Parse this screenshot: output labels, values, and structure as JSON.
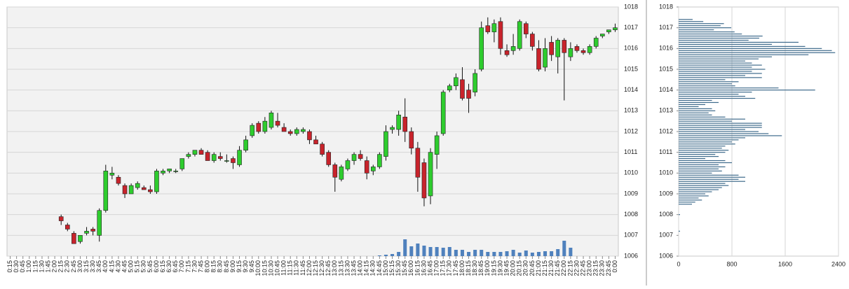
{
  "chart_data": [
    {
      "type": "candlestick",
      "categories": [
        "0:15",
        "0:30",
        "0:45",
        "1:00",
        "1:15",
        "1:30",
        "1:45",
        "2:00",
        "2:15",
        "2:30",
        "2:45",
        "3:00",
        "3:15",
        "3:30",
        "3:45",
        "4:00",
        "4:15",
        "4:30",
        "4:45",
        "5:00",
        "5:15",
        "5:30",
        "5:45",
        "6:00",
        "6:15",
        "6:30",
        "6:45",
        "7:00",
        "7:15",
        "7:30",
        "7:45",
        "8:00",
        "8:15",
        "8:30",
        "8:45",
        "9:00",
        "9:15",
        "9:30",
        "9:45",
        "10:00",
        "10:15",
        "10:30",
        "10:45",
        "11:00",
        "11:15",
        "11:30",
        "11:45",
        "12:00",
        "12:15",
        "12:30",
        "12:45",
        "13:00",
        "13:15",
        "13:30",
        "13:45",
        "14:00",
        "14:15",
        "14:30",
        "14:45",
        "15:00",
        "15:15",
        "15:30",
        "15:45",
        "16:00",
        "16:15",
        "16:30",
        "16:45",
        "17:00",
        "17:15",
        "17:30",
        "17:45",
        "18:00",
        "18:15",
        "18:30",
        "18:45",
        "19:00",
        "19:15",
        "19:30",
        "19:45",
        "20:00",
        "20:15",
        "20:30",
        "20:45",
        "21:00",
        "21:15",
        "21:30",
        "21:45",
        "22:00",
        "22:15",
        "22:30",
        "22:45",
        "23:00",
        "23:15",
        "23:30",
        "23:45",
        "0:00"
      ],
      "open": [
        null,
        null,
        null,
        null,
        null,
        null,
        null,
        null,
        1007.9,
        1007.5,
        1007.1,
        1006.7,
        1007.1,
        1007.3,
        1007.0,
        1008.2,
        1009.9,
        1009.8,
        1009.4,
        1009.0,
        1009.3,
        1009.3,
        1009.2,
        1009.1,
        1010.0,
        1010.1,
        1010.1,
        1010.2,
        1010.8,
        1010.9,
        1011.1,
        1011.0,
        1010.6,
        1010.8,
        1010.6,
        1010.7,
        1010.4,
        1011.1,
        1011.8,
        1012.4,
        1012.0,
        1012.2,
        1012.5,
        1012.2,
        1012.0,
        1011.9,
        1012.0,
        1012.0,
        1011.6,
        1011.4,
        1011.0,
        1010.4,
        1009.7,
        1010.2,
        1010.6,
        1010.9,
        1010.6,
        1010.1,
        1010.3,
        1010.8,
        1012.1,
        1012.1,
        1012.7,
        1012.0,
        1011.2,
        1010.5,
        1008.9,
        1010.9,
        1011.9,
        1014.0,
        1014.2,
        1014.5,
        1014.0,
        1013.9,
        1015.0,
        1017.1,
        1016.8,
        1017.3,
        1015.9,
        1015.9,
        1016.0,
        1017.2,
        1016.7,
        1016.0,
        1015.1,
        1016.3,
        1015.6,
        1016.4,
        1015.6,
        1016.1,
        1015.9,
        1015.8,
        1016.1,
        1016.6,
        1016.8,
        1016.9
      ],
      "high": [
        null,
        null,
        null,
        null,
        null,
        null,
        null,
        null,
        1008.0,
        1007.6,
        1007.2,
        1007.0,
        1007.4,
        1007.4,
        1008.3,
        1010.4,
        1010.3,
        1009.9,
        1009.5,
        1009.5,
        1009.6,
        1009.4,
        1009.4,
        1010.2,
        1010.2,
        1010.2,
        1010.2,
        1010.7,
        1011.0,
        1011.1,
        1011.2,
        1011.1,
        1011.0,
        1011.0,
        1010.9,
        1010.8,
        1011.3,
        1011.8,
        1012.4,
        1012.5,
        1012.7,
        1013.0,
        1012.9,
        1012.4,
        1012.1,
        1012.2,
        1012.2,
        1012.1,
        1011.8,
        1011.5,
        1011.1,
        1010.5,
        1010.4,
        1010.7,
        1011.0,
        1011.1,
        1010.8,
        1010.4,
        1011.0,
        1012.3,
        1012.3,
        1013.0,
        1013.6,
        1012.2,
        1011.5,
        1010.7,
        1011.2,
        1012.0,
        1014.0,
        1014.3,
        1014.8,
        1015.1,
        1014.3,
        1015.0,
        1017.3,
        1017.5,
        1017.4,
        1017.5,
        1016.2,
        1016.7,
        1017.4,
        1017.3,
        1016.8,
        1016.4,
        1016.5,
        1016.6,
        1016.5,
        1016.5,
        1016.3,
        1016.2,
        1016.0,
        1016.2,
        1016.6,
        1016.7,
        1016.9,
        1017.2
      ],
      "low": [
        null,
        null,
        null,
        null,
        null,
        null,
        null,
        null,
        1007.5,
        1007.2,
        1006.6,
        1006.6,
        1007.0,
        1007.0,
        1006.7,
        1008.1,
        1009.7,
        1009.4,
        1008.8,
        1009.0,
        1009.2,
        1009.2,
        1009.0,
        1009.0,
        1009.9,
        1010.0,
        1010.0,
        1010.1,
        1010.7,
        1010.8,
        1010.9,
        1010.6,
        1010.5,
        1010.6,
        1010.5,
        1010.2,
        1010.3,
        1011.0,
        1011.7,
        1011.9,
        1011.9,
        1012.1,
        1012.2,
        1012.0,
        1011.8,
        1011.8,
        1011.9,
        1011.4,
        1011.4,
        1010.8,
        1010.3,
        1009.1,
        1009.6,
        1010.1,
        1010.4,
        1010.6,
        1009.7,
        1009.9,
        1010.2,
        1010.6,
        1011.9,
        1011.8,
        1011.5,
        1010.9,
        1009.1,
        1008.4,
        1008.5,
        1010.2,
        1011.8,
        1013.9,
        1014.0,
        1013.5,
        1012.9,
        1013.7,
        1014.9,
        1016.7,
        1016.3,
        1015.7,
        1015.6,
        1015.7,
        1015.9,
        1016.5,
        1015.9,
        1014.9,
        1014.9,
        1015.4,
        1014.8,
        1013.5,
        1015.4,
        1015.8,
        1015.7,
        1015.7,
        1016.0,
        1016.5,
        1016.7,
        1016.8
      ],
      "close": [
        null,
        null,
        null,
        null,
        null,
        null,
        null,
        null,
        1007.7,
        1007.3,
        1006.6,
        1007.0,
        1007.2,
        1007.2,
        1008.2,
        1010.1,
        1010.0,
        1009.5,
        1009.0,
        1009.4,
        1009.5,
        1009.2,
        1009.1,
        1010.1,
        1010.1,
        1010.2,
        1010.1,
        1010.7,
        1010.9,
        1011.1,
        1010.9,
        1010.6,
        1010.9,
        1010.7,
        1010.6,
        1010.5,
        1011.1,
        1011.6,
        1012.3,
        1012.0,
        1012.5,
        1012.9,
        1012.3,
        1012.0,
        1011.9,
        1012.1,
        1012.1,
        1011.6,
        1011.4,
        1010.9,
        1010.4,
        1009.8,
        1010.3,
        1010.6,
        1010.9,
        1010.7,
        1010.0,
        1010.3,
        1010.9,
        1012.0,
        1012.2,
        1012.8,
        1012.0,
        1011.2,
        1009.8,
        1008.8,
        1011.0,
        1011.8,
        1013.9,
        1014.2,
        1014.6,
        1013.6,
        1013.6,
        1014.8,
        1017.0,
        1016.8,
        1017.2,
        1016.0,
        1015.7,
        1016.1,
        1017.3,
        1016.7,
        1016.1,
        1015.0,
        1016.0,
        1015.7,
        1016.4,
        1015.8,
        1016.0,
        1015.9,
        1015.8,
        1016.1,
        1016.5,
        1016.7,
        1016.9,
        1017.0
      ],
      "volume": [
        null,
        null,
        null,
        null,
        null,
        null,
        null,
        null,
        null,
        null,
        null,
        null,
        null,
        null,
        null,
        null,
        null,
        null,
        null,
        null,
        null,
        null,
        null,
        null,
        null,
        null,
        null,
        null,
        null,
        null,
        null,
        null,
        null,
        null,
        null,
        null,
        null,
        null,
        null,
        null,
        null,
        null,
        null,
        null,
        null,
        null,
        null,
        null,
        null,
        null,
        null,
        null,
        null,
        null,
        null,
        null,
        null,
        null,
        1,
        2,
        3,
        6,
        24,
        14,
        18,
        15,
        13,
        13,
        12,
        13,
        9,
        9,
        6,
        9,
        9,
        6,
        6,
        6,
        7,
        9,
        5,
        8,
        5,
        6,
        7,
        7,
        10,
        22,
        12,
        null,
        null,
        null,
        null,
        null,
        null,
        null
      ],
      "up_color": "#2ecc2e",
      "down_color": "#c8232b",
      "volume_color": "#4f81bd",
      "ylim": [
        1006,
        1018
      ],
      "yticks": [
        1006,
        1007,
        1008,
        1009,
        1010,
        1011,
        1012,
        1013,
        1014,
        1015,
        1016,
        1017,
        1018
      ],
      "grid": true
    },
    {
      "type": "hbar",
      "y": [
        1017.4,
        1017.3,
        1017.2,
        1017.1,
        1017.0,
        1016.9,
        1016.8,
        1016.7,
        1016.6,
        1016.5,
        1016.4,
        1016.3,
        1016.2,
        1016.1,
        1016.0,
        1015.9,
        1015.8,
        1015.7,
        1015.6,
        1015.5,
        1015.4,
        1015.3,
        1015.2,
        1015.1,
        1015.0,
        1014.9,
        1014.8,
        1014.7,
        1014.6,
        1014.5,
        1014.4,
        1014.3,
        1014.2,
        1014.1,
        1014.0,
        1013.9,
        1013.8,
        1013.7,
        1013.6,
        1013.5,
        1013.4,
        1013.3,
        1013.2,
        1013.1,
        1013.0,
        1012.9,
        1012.8,
        1012.7,
        1012.6,
        1012.5,
        1012.4,
        1012.3,
        1012.2,
        1012.1,
        1012.0,
        1011.9,
        1011.8,
        1011.7,
        1011.6,
        1011.5,
        1011.4,
        1011.3,
        1011.2,
        1011.1,
        1011.0,
        1010.9,
        1010.8,
        1010.7,
        1010.6,
        1010.5,
        1010.4,
        1010.3,
        1010.2,
        1010.1,
        1010.0,
        1009.9,
        1009.8,
        1009.7,
        1009.6,
        1009.5,
        1009.4,
        1009.3,
        1009.2,
        1009.1,
        1009.0,
        1008.9,
        1008.8,
        1008.7,
        1008.6,
        1008.5,
        1008.0,
        1007.2
      ],
      "values": [
        210,
        370,
        680,
        630,
        790,
        530,
        840,
        950,
        1260,
        1210,
        1050,
        1800,
        1400,
        1900,
        2150,
        2300,
        2350,
        1950,
        1400,
        1200,
        1000,
        1100,
        1250,
        1100,
        1300,
        1100,
        1250,
        1000,
        1250,
        700,
        900,
        800,
        850,
        1500,
        2050,
        1100,
        900,
        1000,
        1150,
        500,
        600,
        400,
        300,
        500,
        550,
        450,
        500,
        700,
        1000,
        800,
        1250,
        1250,
        1250,
        1000,
        1200,
        1350,
        1550,
        1000,
        900,
        800,
        850,
        700,
        650,
        750,
        700,
        550,
        600,
        400,
        700,
        800,
        600,
        700,
        600,
        650,
        500,
        900,
        1000,
        900,
        1000,
        700,
        750,
        650,
        600,
        500,
        400,
        450,
        300,
        350,
        250,
        200,
        20,
        20
      ],
      "color": "#3f6b8c",
      "ylim": [
        1006,
        1018
      ],
      "yticks": [
        1006,
        1007,
        1008,
        1009,
        1010,
        1011,
        1012,
        1013,
        1014,
        1015,
        1016,
        1017,
        1018
      ],
      "xlim": [
        0,
        2400
      ],
      "xticks": [
        0,
        800,
        1600,
        2400
      ],
      "grid": true
    }
  ]
}
